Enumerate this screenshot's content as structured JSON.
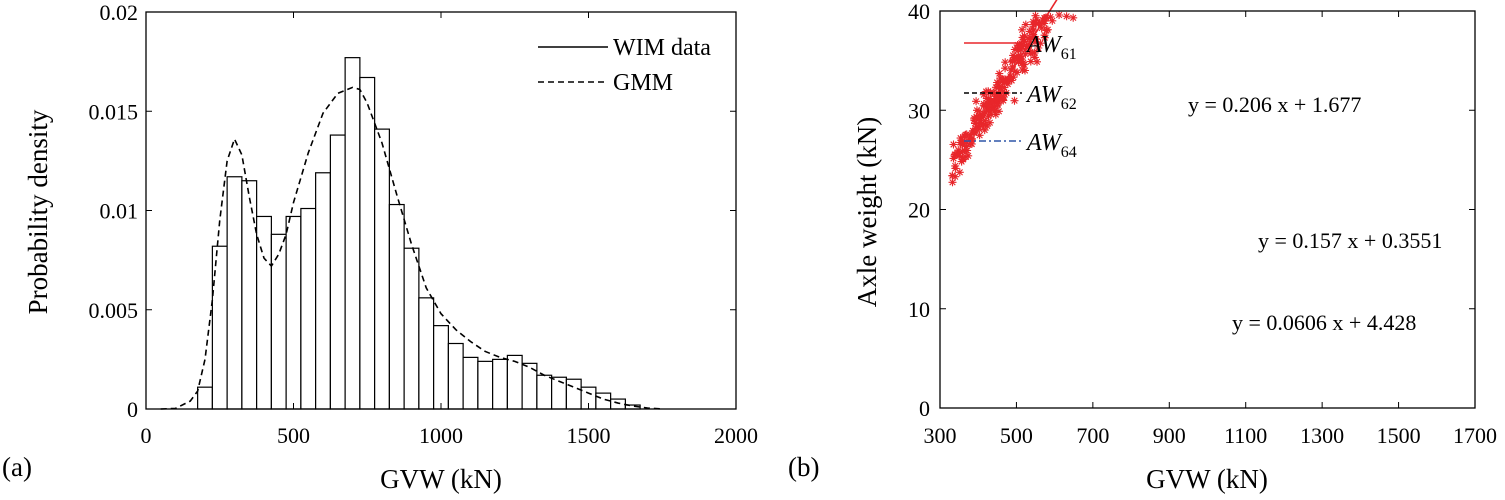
{
  "chart_data": [
    {
      "panel_label": "(a)",
      "type": "bar",
      "xlabel": "GVW (kN)",
      "ylabel": "Probability density",
      "xlim": [
        0,
        2000
      ],
      "ylim": [
        0,
        0.02
      ],
      "xticks": [
        "0",
        "500",
        "1000",
        "1500",
        "2000"
      ],
      "yticks": [
        "0",
        "0.005",
        "0.01",
        "0.015",
        "0.02"
      ],
      "bin_width": 50,
      "bin_starts": [
        175,
        225,
        275,
        325,
        375,
        425,
        475,
        525,
        575,
        625,
        675,
        725,
        775,
        825,
        875,
        925,
        975,
        1025,
        1075,
        1125,
        1175,
        1225,
        1275,
        1325,
        1375,
        1425,
        1475,
        1525,
        1575,
        1625
      ],
      "values": [
        0.0011,
        0.0082,
        0.0117,
        0.0115,
        0.0097,
        0.0088,
        0.0097,
        0.0101,
        0.0119,
        0.0138,
        0.0177,
        0.0167,
        0.0141,
        0.0103,
        0.0081,
        0.0056,
        0.0042,
        0.0033,
        0.0026,
        0.0024,
        0.0025,
        0.0027,
        0.0023,
        0.0017,
        0.0016,
        0.0015,
        0.0011,
        0.0008,
        0.0005,
        0.0002
      ],
      "series": [
        {
          "name": "WIM data",
          "style": "solid",
          "color": "#000000"
        },
        {
          "name": "GMM",
          "style": "dashed",
          "color": "#000000",
          "x": [
            50,
            100,
            150,
            175,
            200,
            225,
            250,
            275,
            300,
            325,
            350,
            375,
            400,
            425,
            450,
            475,
            500,
            550,
            600,
            650,
            700,
            725,
            750,
            800,
            850,
            900,
            950,
            1000,
            1050,
            1100,
            1150,
            1200,
            1250,
            1300,
            1350,
            1400,
            1450,
            1500,
            1550,
            1600,
            1650,
            1700,
            1750
          ],
          "y": [
            0.0,
            3e-05,
            0.0004,
            0.0009,
            0.0025,
            0.0055,
            0.0095,
            0.0125,
            0.0136,
            0.0128,
            0.0107,
            0.0088,
            0.0076,
            0.0072,
            0.0078,
            0.0088,
            0.0104,
            0.0129,
            0.0149,
            0.0159,
            0.0162,
            0.0161,
            0.0154,
            0.0134,
            0.0108,
            0.0083,
            0.0061,
            0.0048,
            0.004,
            0.0034,
            0.0029,
            0.0026,
            0.0024,
            0.0021,
            0.0017,
            0.0014,
            0.0011,
            0.0008,
            0.0005,
            0.0003,
            0.00015,
            5e-05,
            0.0
          ]
        }
      ],
      "legend": [
        "WIM data",
        "GMM"
      ],
      "legend_position": "top-right"
    },
    {
      "panel_label": "(b)",
      "type": "scatter",
      "xlabel": "GVW (kN)",
      "ylabel": "Axle weight (kN)",
      "xlim": [
        300,
        1700
      ],
      "ylim": [
        0,
        40
      ],
      "xticks": [
        "300",
        "500",
        "700",
        "900",
        "1100",
        "1300",
        "1500",
        "1700"
      ],
      "yticks": [
        "0",
        "10",
        "20",
        "30",
        "40"
      ],
      "series": [
        {
          "name": "AW",
          "subscript": "61",
          "marker": "asterisk",
          "color": "#e8262b",
          "fit": {
            "slope": 0.0606,
            "intercept": 4.428
          },
          "equation": "y = 0.0606 x + 4.428"
        },
        {
          "name": "AW",
          "subscript": "62",
          "marker": "circle",
          "color": "#000000",
          "fit": {
            "slope": 0.157,
            "intercept": 0.3551
          },
          "equation": "y = 0.157 x + 0.3551"
        },
        {
          "name": "AW",
          "subscript": "64",
          "marker": "plus",
          "color": "#2f56a8",
          "fit": {
            "slope": 0.206,
            "intercept": 1.677
          },
          "equation": "y = 0.206 x + 1.677"
        }
      ],
      "legend_position": "top-left"
    }
  ]
}
